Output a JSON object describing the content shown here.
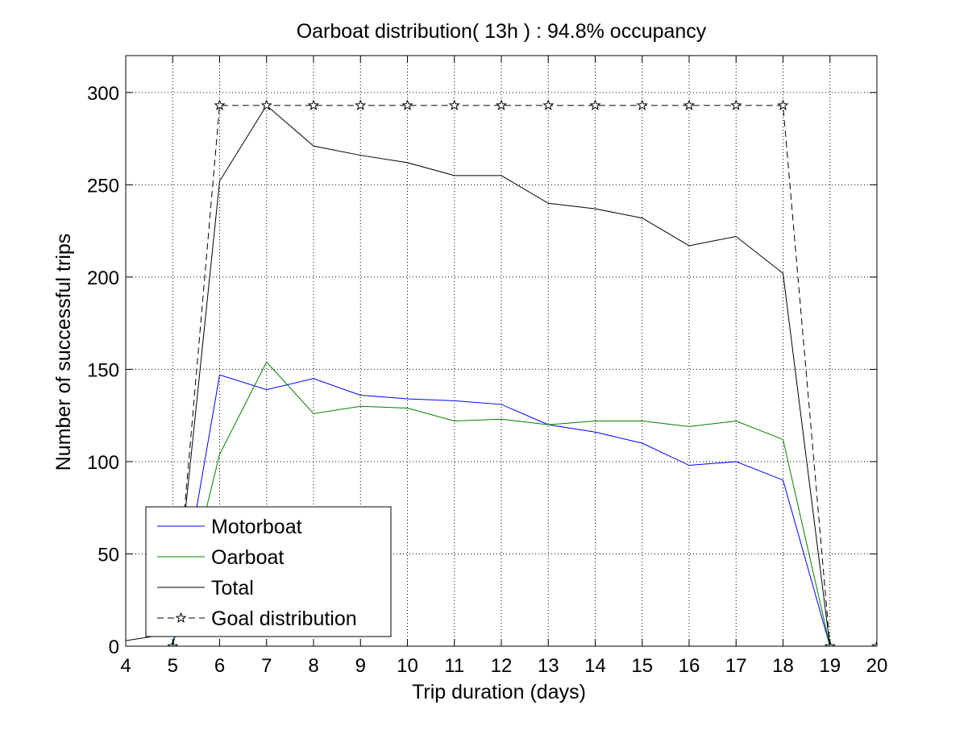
{
  "chart_data": {
    "type": "line",
    "title": "Oarboat distribution( 13h ) : 94.8% occupancy",
    "xlabel": "Trip duration (days)",
    "ylabel": "Number of successful trips",
    "xlim": [
      4,
      20
    ],
    "ylim": [
      0,
      320
    ],
    "xticks": [
      4,
      5,
      6,
      7,
      8,
      9,
      10,
      11,
      12,
      13,
      14,
      15,
      16,
      17,
      18,
      19,
      20
    ],
    "yticks": [
      0,
      50,
      100,
      150,
      200,
      250,
      300
    ],
    "grid": true,
    "legend_position": "bottom-left",
    "series": [
      {
        "name": "Motorboat",
        "color": "#0000ff",
        "style": "solid",
        "marker": "none",
        "x": [
          4,
          5,
          6,
          7,
          8,
          9,
          10,
          11,
          12,
          13,
          14,
          15,
          16,
          17,
          18,
          19
        ],
        "y": [
          0,
          0,
          147,
          139,
          145,
          136,
          134,
          133,
          131,
          120,
          116,
          110,
          98,
          100,
          90,
          0
        ]
      },
      {
        "name": "Oarboat",
        "color": "#008000",
        "style": "solid",
        "marker": "none",
        "x": [
          4,
          5,
          6,
          7,
          8,
          9,
          10,
          11,
          12,
          13,
          14,
          15,
          16,
          17,
          18,
          19
        ],
        "y": [
          0,
          0,
          104,
          154,
          126,
          130,
          129,
          122,
          123,
          120,
          122,
          122,
          119,
          122,
          112,
          0
        ]
      },
      {
        "name": "Total",
        "color": "#000000",
        "style": "solid",
        "marker": "none",
        "x": [
          4,
          5,
          6,
          7,
          8,
          9,
          10,
          11,
          12,
          13,
          14,
          15,
          16,
          17,
          18,
          19
        ],
        "y": [
          3,
          7,
          252,
          293,
          271,
          266,
          262,
          255,
          255,
          240,
          237,
          232,
          217,
          222,
          202,
          0
        ]
      },
      {
        "name": "Goal distribution",
        "color": "#000000",
        "style": "dashed",
        "marker": "star",
        "x": [
          5,
          6,
          7,
          8,
          9,
          10,
          11,
          12,
          13,
          14,
          15,
          16,
          17,
          18,
          19,
          20
        ],
        "y": [
          0,
          293,
          293,
          293,
          293,
          293,
          293,
          293,
          293,
          293,
          293,
          293,
          293,
          293,
          0,
          0
        ]
      }
    ]
  }
}
